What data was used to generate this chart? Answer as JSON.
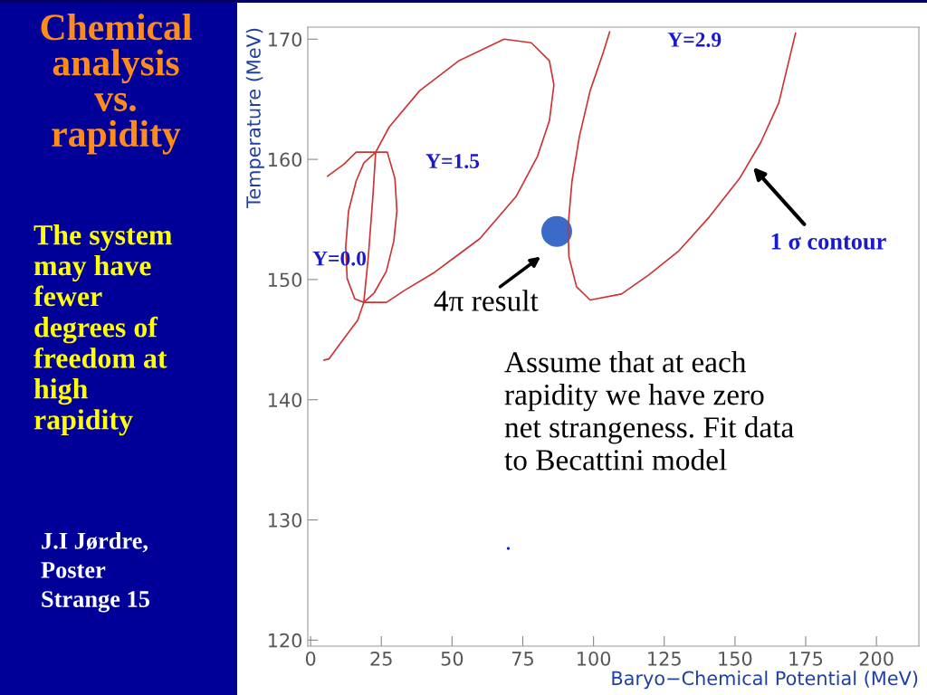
{
  "chart_data": {
    "type": "line",
    "title": "Chemical\nanalysis\nvs.\nrapidity",
    "subtitle": "The system\nmay have\nfewer\ndegrees of\nfreedom at\nhigh\nrapidity",
    "xlabel": "Baryo−Chemical Potential (MeV)",
    "ylabel": "Temperature (MeV)",
    "xlim": [
      -1,
      215
    ],
    "ylim": [
      119.5,
      171
    ],
    "xticks": [
      0,
      25,
      50,
      75,
      100,
      125,
      150,
      175,
      200
    ],
    "yticks": [
      120,
      130,
      140,
      150,
      160,
      170
    ],
    "grid": false,
    "legend": false,
    "line_style": "solid",
    "marker": "none",
    "series": [
      {
        "color": "#cc3333",
        "x": [
          6.0,
          11.8,
          16.1,
          27.1,
          29.8,
          30.5,
          29.4,
          26.8,
          22.5,
          18.8,
          15.6,
          12.9,
          12.4,
          13.4,
          16.1,
          18.8,
          23.0
        ],
        "values": [
          158.6,
          159.6,
          160.6,
          160.6,
          158.4,
          155.7,
          153.2,
          150.7,
          148.9,
          148.1,
          148.4,
          150.1,
          152.7,
          155.7,
          158.2,
          159.7,
          160.6
        ]
      },
      {
        "color": "#cc3333",
        "x": [
          4.8,
          6.5,
          11.8,
          16.6,
          18.8,
          20.4,
          22.0,
          23.0,
          27.8,
          38.5,
          52.4,
          68.4,
          78.0,
          84.4,
          86.0,
          84.4,
          80.1,
          72.6,
          59.8,
          43.8,
          33.2,
          26.8,
          18.8
        ],
        "values": [
          143.3,
          143.4,
          145.1,
          146.6,
          148.1,
          151.9,
          156.9,
          160.6,
          162.7,
          165.7,
          168.2,
          170.0,
          169.7,
          168.2,
          166.2,
          163.2,
          160.2,
          156.9,
          153.4,
          150.6,
          149.1,
          148.1,
          148.1
        ]
      },
      {
        "color": "#cc3333",
        "x": [
          105.7,
          103.6,
          98.8,
          95.0,
          92.4,
          91.0,
          91.3,
          94.0,
          98.8,
          109.9,
          119.6,
          130.2,
          140.9,
          151.6,
          159.1,
          165.5,
          171.4
        ],
        "values": [
          170.6,
          169.0,
          165.7,
          161.9,
          158.2,
          154.4,
          151.9,
          149.4,
          148.3,
          148.8,
          150.4,
          152.4,
          155.2,
          158.4,
          161.4,
          164.7,
          170.5
        ]
      },
      {
        "type": "scatter",
        "color": "#3a6bc8",
        "marker": "circle",
        "x": [
          87.0
        ],
        "values": [
          154.0
        ]
      }
    ],
    "annotations": [
      "Y=0.0",
      "Y=1.5",
      "Y=2.9",
      "4π result",
      "1 σ contour",
      "Assume that at each\nrapidity we have zero\nnet strangeness. Fit data\nto Becattini model",
      ".",
      "J.I Jørdre,\nPoster\nStrange 15"
    ]
  }
}
